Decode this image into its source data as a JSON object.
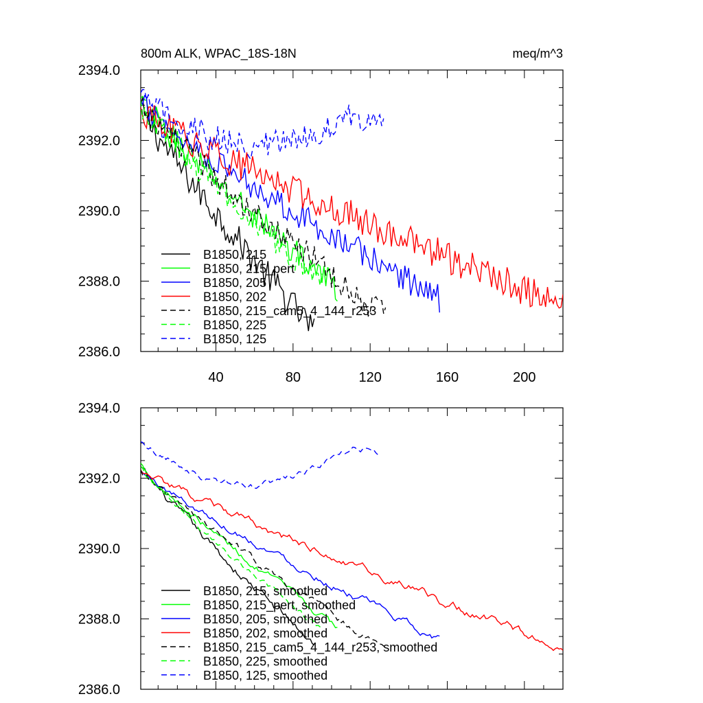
{
  "chart_data": [
    {
      "type": "line",
      "title_left": "800m ALK, WPAC_18S-18N",
      "title_right": "meq/m^3",
      "xlabel": "",
      "ylabel": "",
      "xlim": [
        1,
        220
      ],
      "ylim": [
        2386.0,
        2394.0
      ],
      "yticks": [
        "2386.0",
        "2388.0",
        "2390.0",
        "2392.0",
        "2394.0"
      ],
      "xticks": [
        "40",
        "80",
        "120",
        "160",
        "200"
      ],
      "legend_position": "lower-left inside",
      "series": [
        {
          "name": "B1850, 215",
          "color": "#000000",
          "dash": "solid",
          "length": 91,
          "start": 2392.9,
          "end": 2386.6,
          "noise": 0.45
        },
        {
          "name": "B1850, 215_pert",
          "color": "#00ff00",
          "dash": "solid",
          "length": 103,
          "start": 2393.1,
          "end": 2387.8,
          "noise": 0.4
        },
        {
          "name": "B1850, 205",
          "color": "#0000ff",
          "dash": "solid",
          "length": 156,
          "start": 2393.0,
          "end": 2387.5,
          "noise": 0.4
        },
        {
          "name": "B1850, 202",
          "color": "#ff0000",
          "dash": "solid",
          "length": 220,
          "start": 2392.8,
          "end": 2387.3,
          "noise": 0.45
        },
        {
          "name": "B1850, 215_cam5_4_144_r253",
          "color": "#000000",
          "dash": "dashed",
          "length": 128,
          "start": 2393.0,
          "end": 2387.0,
          "noise": 0.4
        },
        {
          "name": "B1850, 225",
          "color": "#00ff00",
          "dash": "dashed",
          "length": 95,
          "start": 2393.0,
          "end": 2387.9,
          "noise": 0.35
        },
        {
          "name": "B1850, 125",
          "color": "#0000ff",
          "dash": "dashed",
          "length": 127,
          "start": 2393.2,
          "end": 2392.6,
          "noise": 0.4
        }
      ]
    },
    {
      "type": "line",
      "title_left": "",
      "title_right": "",
      "xlabel": "",
      "ylabel": "",
      "xlim": [
        1,
        220
      ],
      "ylim": [
        2386.0,
        2394.0
      ],
      "yticks": [
        "2386.0",
        "2388.0",
        "2390.0",
        "2392.0",
        "2394.0"
      ],
      "xticks": [],
      "legend_position": "lower-left inside",
      "series": [
        {
          "name": "B1850, 215, smoothed",
          "color": "#000000",
          "dash": "solid",
          "length": 91,
          "start": 2392.3,
          "end": 2387.3,
          "noise": 0.15
        },
        {
          "name": "B1850, 215_pert, smoothed",
          "color": "#00ff00",
          "dash": "solid",
          "length": 103,
          "start": 2392.4,
          "end": 2387.7,
          "noise": 0.12
        },
        {
          "name": "B1850, 205, smoothed",
          "color": "#0000ff",
          "dash": "solid",
          "length": 156,
          "start": 2392.2,
          "end": 2387.4,
          "noise": 0.12
        },
        {
          "name": "B1850, 202, smoothed",
          "color": "#ff0000",
          "dash": "solid",
          "length": 220,
          "start": 2392.2,
          "end": 2387.2,
          "noise": 0.14
        },
        {
          "name": "B1850, 215_cam5_4_144_r253, smoothed",
          "color": "#000000",
          "dash": "dashed",
          "length": 128,
          "start": 2392.2,
          "end": 2387.1,
          "noise": 0.12
        },
        {
          "name": "B1850, 225, smoothed",
          "color": "#00ff00",
          "dash": "dashed",
          "length": 95,
          "start": 2392.3,
          "end": 2387.7,
          "noise": 0.1
        },
        {
          "name": "B1850, 125, smoothed",
          "color": "#0000ff",
          "dash": "dashed",
          "length": 124,
          "start": 2393.0,
          "end": 2392.75,
          "noise": 0.12
        }
      ]
    }
  ]
}
